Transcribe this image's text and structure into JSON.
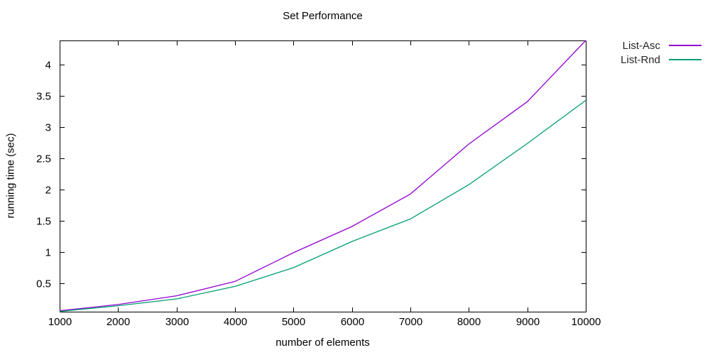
{
  "chart_data": {
    "type": "line",
    "title": "Set Performance",
    "xlabel": "number of elements",
    "ylabel": "running time (sec)",
    "x": [
      1000,
      2000,
      3000,
      4000,
      5000,
      6000,
      7000,
      8000,
      9000,
      10000
    ],
    "series": [
      {
        "name": "List-Asc",
        "color": "#9400d3",
        "values": [
          0.06,
          0.16,
          0.3,
          0.53,
          0.99,
          1.41,
          1.93,
          2.73,
          3.41,
          4.39
        ]
      },
      {
        "name": "List-Rnd",
        "color": "#009e73",
        "values": [
          0.05,
          0.14,
          0.25,
          0.45,
          0.75,
          1.17,
          1.53,
          2.08,
          2.74,
          3.43
        ]
      }
    ],
    "xlim": [
      1000,
      10000
    ],
    "ylim": [
      0.045,
      4.39
    ],
    "xticks": [
      1000,
      2000,
      3000,
      4000,
      5000,
      6000,
      7000,
      8000,
      9000,
      10000
    ],
    "yticks": [
      0.5,
      1,
      1.5,
      2,
      2.5,
      3,
      3.5,
      4
    ],
    "grid": false,
    "legend_position": "outside-top-right",
    "axis_color": "#000000",
    "background": "#ffffff"
  }
}
